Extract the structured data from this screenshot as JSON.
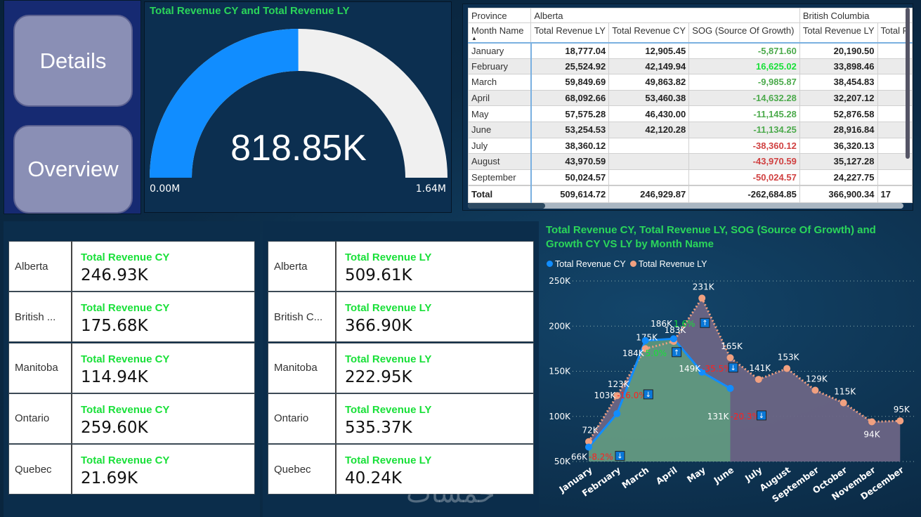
{
  "nav": {
    "details": "Details",
    "overview": "Overview"
  },
  "gauge": {
    "title": "Total Revenue CY and Total Revenue LY",
    "value": "818.85K",
    "min": "0.00M",
    "max": "1.64M",
    "fill_fraction": 0.4993,
    "fill_color": "#118dff",
    "track_color": "#f0f0f0"
  },
  "matrix": {
    "h_province": "Province",
    "h_month": "Month Name",
    "groups": [
      "Alberta",
      "British Columbia"
    ],
    "columns": [
      "Total Revenue LY",
      "Total Revenue CY",
      "SOG (Source Of Growth)",
      "Total Revenue LY",
      "Total R"
    ],
    "rows": [
      {
        "month": "January",
        "ly": "18,777.04",
        "cy": "12,905.45",
        "sog": "-5,871.60",
        "sog_color": "neg1",
        "bc_ly": "20,190.50"
      },
      {
        "month": "February",
        "ly": "25,524.92",
        "cy": "42,149.94",
        "sog": "16,625.02",
        "sog_color": "pos",
        "bc_ly": "33,898.46"
      },
      {
        "month": "March",
        "ly": "59,849.69",
        "cy": "49,863.82",
        "sog": "-9,985.87",
        "sog_color": "neg1",
        "bc_ly": "38,454.83"
      },
      {
        "month": "April",
        "ly": "68,092.66",
        "cy": "53,460.38",
        "sog": "-14,632.28",
        "sog_color": "neg1",
        "bc_ly": "32,207.12"
      },
      {
        "month": "May",
        "ly": "57,575.28",
        "cy": "46,430.00",
        "sog": "-11,145.28",
        "sog_color": "neg1",
        "bc_ly": "52,876.58"
      },
      {
        "month": "June",
        "ly": "53,254.53",
        "cy": "42,120.28",
        "sog": "-11,134.25",
        "sog_color": "neg1",
        "bc_ly": "28,916.84"
      },
      {
        "month": "July",
        "ly": "38,360.12",
        "cy": "",
        "sog": "-38,360.12",
        "sog_color": "neg2",
        "bc_ly": "36,320.13"
      },
      {
        "month": "August",
        "ly": "43,970.59",
        "cy": "",
        "sog": "-43,970.59",
        "sog_color": "neg2",
        "bc_ly": "35,127.28"
      },
      {
        "month": "September",
        "ly": "50,024.57",
        "cy": "",
        "sog": "-50,024.57",
        "sog_color": "neg2",
        "bc_ly": "24,227.75"
      }
    ],
    "total": {
      "label": "Total",
      "ly": "509,614.72",
      "cy": "246,929.87",
      "sog": "-262,684.85",
      "bc_ly": "366,900.34",
      "cut": "17"
    }
  },
  "cards_cy": [
    {
      "province": "Alberta",
      "title": "Total Revenue CY",
      "value": "246.93K"
    },
    {
      "province": "British ...",
      "title": "Total Revenue CY",
      "value": "175.68K"
    },
    {
      "province": "Manitoba",
      "title": "Total Revenue CY",
      "value": "114.94K"
    },
    {
      "province": "Ontario",
      "title": "Total Revenue CY",
      "value": "259.60K"
    },
    {
      "province": "Quebec",
      "title": "Total Revenue CY",
      "value": "21.69K"
    }
  ],
  "cards_ly": [
    {
      "province": "Alberta",
      "title": "Total Revenue LY",
      "value": "509.61K"
    },
    {
      "province": "British C...",
      "title": "Total Revenue LY",
      "value": "366.90K"
    },
    {
      "province": "Manitoba",
      "title": "Total Revenue LY",
      "value": "222.95K"
    },
    {
      "province": "Ontario",
      "title": "Total Revenue LY",
      "value": "535.37K"
    },
    {
      "province": "Quebec",
      "title": "Total Revenue LY",
      "value": "40.24K"
    }
  ],
  "chart_data": {
    "type": "line",
    "title": "Total Revenue CY, Total Revenue LY, SOG (Source Of Growth) and Growth CY VS LY by Month Name",
    "categories": [
      "January",
      "February",
      "March",
      "April",
      "May",
      "June",
      "July",
      "August",
      "September",
      "October",
      "November",
      "December"
    ],
    "series": [
      {
        "name": "Total Revenue CY",
        "color": "#118dff",
        "values": [
          66,
          103,
          184,
          186,
          149,
          131,
          null,
          null,
          null,
          null,
          null,
          null
        ],
        "labels": [
          "66K",
          "103K",
          "184K",
          "186K",
          "149K",
          "131K"
        ]
      },
      {
        "name": "Total Revenue LY",
        "color": "#f0a080",
        "values": [
          72,
          123,
          175,
          183,
          231,
          165,
          141,
          153,
          129,
          115,
          94,
          95
        ],
        "labels": [
          "72K",
          "123K",
          "175K",
          "183K",
          "231K",
          "165K",
          "141K",
          "153K",
          "129K",
          "115K",
          "94K",
          "95K"
        ]
      }
    ],
    "growth": [
      "-8.2%",
      "-16.0%",
      "5.0%",
      "1.6%",
      "-35.5%",
      "-20.3%"
    ],
    "y_ticks": [
      "50K",
      "100K",
      "150K",
      "200K",
      "250K"
    ],
    "ylim": [
      50,
      250
    ],
    "grid": true,
    "legend": "top-left"
  },
  "watermark": "خمسات"
}
